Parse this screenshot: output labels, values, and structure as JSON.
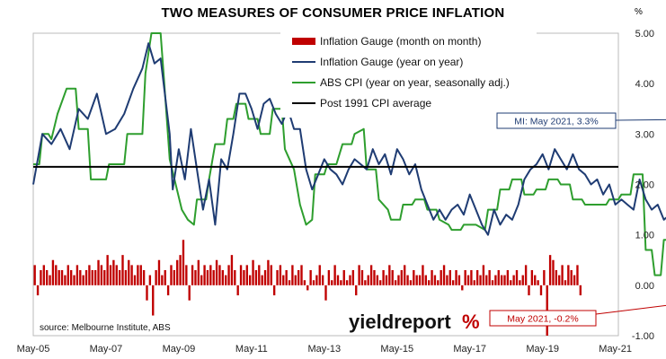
{
  "title": "TWO MEASURES OF CONSUMER PRICE INFLATION",
  "unit": "%",
  "source": "source: Melbourne Institute, ABS",
  "brand": {
    "part1": "yieldreport",
    "part2": "%"
  },
  "chart_data": {
    "type": "line",
    "x_range": [
      "May-05",
      "Jun-21"
    ],
    "ylim": [
      -1,
      5
    ],
    "y_ticks": [
      "5.00",
      "4.00",
      "3.00",
      "2.00",
      "1.00",
      "0.00",
      "-1.00"
    ],
    "x_ticks": [
      "May-05",
      "May-07",
      "May-09",
      "May-11",
      "May-13",
      "May-15",
      "May-17",
      "May-19",
      "May-21"
    ],
    "legend_position": "top-right",
    "series": [
      {
        "name": "Inflation Gauge (month on month)",
        "kind": "bar",
        "color": "#c00000",
        "values": [
          0.4,
          -0.2,
          0.3,
          0.4,
          0.3,
          0.2,
          0.5,
          0.4,
          0.3,
          0.3,
          0.2,
          0.4,
          0.3,
          0.2,
          0.4,
          0.3,
          0.2,
          0.3,
          0.4,
          0.3,
          0.3,
          0.5,
          0.4,
          0.3,
          0.6,
          0.4,
          0.5,
          0.4,
          0.3,
          0.6,
          0.3,
          0.5,
          0.4,
          0.2,
          0.4,
          0.4,
          0.3,
          -0.3,
          0.2,
          -0.6,
          0.3,
          0.5,
          0.2,
          0.3,
          -0.2,
          0.4,
          0.3,
          0.5,
          0.6,
          0.9,
          0.4,
          -0.3,
          0.4,
          0.3,
          0.5,
          0.2,
          0.4,
          0.3,
          0.4,
          0.3,
          0.5,
          0.4,
          0.3,
          0.2,
          0.4,
          0.6,
          0.3,
          -0.2,
          0.4,
          0.3,
          0.4,
          0.2,
          0.5,
          0.3,
          0.4,
          0.2,
          0.3,
          0.5,
          0.4,
          -0.2,
          0.3,
          0.4,
          0.2,
          0.3,
          0.1,
          0.4,
          0.2,
          0.3,
          0.4,
          0.1,
          -0.1,
          0.3,
          0.1,
          0.2,
          0.4,
          0.2,
          -0.3,
          0.3,
          0.1,
          0.4,
          0.2,
          0.1,
          0.3,
          0.1,
          0.2,
          0.3,
          -0.2,
          0.4,
          0.3,
          0.1,
          0.2,
          0.4,
          0.3,
          0.2,
          0.1,
          0.3,
          0.2,
          0.4,
          0.3,
          0.1,
          0.2,
          0.3,
          0.4,
          0.2,
          0.1,
          0.3,
          0.2,
          0.2,
          0.4,
          0.2,
          0.1,
          0.3,
          0.2,
          0.1,
          0.3,
          0.4,
          0.2,
          0.3,
          0.1,
          0.3,
          0.2,
          -0.1,
          0.3,
          0.2,
          0.3,
          0.1,
          0.3,
          0.2,
          0.4,
          0.2,
          0.3,
          0.1,
          0.2,
          0.3,
          0.2,
          0.2,
          0.3,
          0.1,
          0.2,
          0.3,
          0.1,
          0.2,
          0.4,
          -0.2,
          0.3,
          0.2,
          0.1,
          -0.2,
          0.3,
          -1.0,
          0.6,
          0.5,
          0.3,
          0.2,
          0.4,
          0.1,
          0.4,
          0.3,
          0.2,
          0.4,
          -0.2
        ]
      },
      {
        "name": "Inflation Gauge (year on year)",
        "kind": "line",
        "color": "#1f3c73",
        "points": [
          [
            0,
            2.0
          ],
          [
            3,
            3.0
          ],
          [
            6,
            2.8
          ],
          [
            9,
            3.1
          ],
          [
            12,
            2.7
          ],
          [
            15,
            3.5
          ],
          [
            18,
            3.3
          ],
          [
            21,
            3.8
          ],
          [
            24,
            3.0
          ],
          [
            27,
            3.1
          ],
          [
            30,
            3.4
          ],
          [
            33,
            3.9
          ],
          [
            36,
            4.3
          ],
          [
            38,
            4.8
          ],
          [
            40,
            4.4
          ],
          [
            42,
            4.5
          ],
          [
            45,
            3.0
          ],
          [
            46,
            1.9
          ],
          [
            48,
            2.7
          ],
          [
            50,
            2.1
          ],
          [
            52,
            3.1
          ],
          [
            54,
            2.3
          ],
          [
            56,
            1.5
          ],
          [
            58,
            2.1
          ],
          [
            60,
            1.2
          ],
          [
            62,
            2.5
          ],
          [
            64,
            2.3
          ],
          [
            66,
            3.0
          ],
          [
            68,
            3.8
          ],
          [
            70,
            3.8
          ],
          [
            72,
            3.5
          ],
          [
            74,
            3.1
          ],
          [
            76,
            3.6
          ],
          [
            78,
            3.7
          ],
          [
            80,
            3.4
          ],
          [
            82,
            3.2
          ],
          [
            84,
            3.5
          ],
          [
            86,
            3.1
          ],
          [
            88,
            3.1
          ],
          [
            90,
            2.3
          ],
          [
            92,
            1.9
          ],
          [
            94,
            2.2
          ],
          [
            96,
            2.5
          ],
          [
            98,
            2.3
          ],
          [
            100,
            2.2
          ],
          [
            102,
            2.0
          ],
          [
            104,
            2.3
          ],
          [
            106,
            2.5
          ],
          [
            108,
            2.4
          ],
          [
            110,
            2.3
          ],
          [
            112,
            2.7
          ],
          [
            114,
            2.4
          ],
          [
            116,
            2.6
          ],
          [
            118,
            2.2
          ],
          [
            120,
            2.7
          ],
          [
            122,
            2.5
          ],
          [
            124,
            2.2
          ],
          [
            126,
            2.4
          ],
          [
            128,
            1.9
          ],
          [
            130,
            1.6
          ],
          [
            132,
            1.3
          ],
          [
            134,
            1.5
          ],
          [
            136,
            1.3
          ],
          [
            138,
            1.5
          ],
          [
            140,
            1.6
          ],
          [
            142,
            1.4
          ],
          [
            144,
            1.8
          ],
          [
            146,
            1.5
          ],
          [
            148,
            1.2
          ],
          [
            150,
            1.0
          ],
          [
            152,
            1.5
          ],
          [
            154,
            1.2
          ],
          [
            156,
            1.4
          ],
          [
            158,
            1.3
          ],
          [
            160,
            1.6
          ],
          [
            162,
            2.1
          ],
          [
            164,
            2.3
          ],
          [
            166,
            2.4
          ],
          [
            168,
            2.6
          ],
          [
            170,
            2.3
          ],
          [
            172,
            2.7
          ],
          [
            174,
            2.5
          ],
          [
            176,
            2.3
          ],
          [
            178,
            2.6
          ],
          [
            180,
            2.3
          ],
          [
            182,
            2.2
          ],
          [
            184,
            2.0
          ],
          [
            186,
            2.1
          ],
          [
            188,
            1.8
          ],
          [
            190,
            2.0
          ],
          [
            192,
            1.6
          ],
          [
            194,
            1.7
          ],
          [
            196,
            1.6
          ],
          [
            198,
            1.5
          ],
          [
            200,
            2.1
          ],
          [
            202,
            1.7
          ],
          [
            204,
            1.5
          ],
          [
            206,
            1.6
          ],
          [
            208,
            1.3
          ],
          [
            210,
            1.4
          ],
          [
            212,
            1.2
          ],
          [
            214,
            1.4
          ],
          [
            216,
            0.9
          ],
          [
            217,
            0.3
          ],
          [
            219,
            0.9
          ],
          [
            221,
            1.3
          ],
          [
            223,
            1.3
          ],
          [
            225,
            1.1
          ],
          [
            227,
            1.5
          ],
          [
            229,
            1.5
          ],
          [
            231,
            1.6
          ],
          [
            233,
            1.9
          ],
          [
            235,
            2.6
          ],
          [
            236,
            3.3
          ]
        ]
      },
      {
        "name": "ABS CPI (year on year, seasonally adj.)",
        "kind": "line",
        "color": "#2e9e2e",
        "points": [
          [
            0,
            2.4
          ],
          [
            2,
            2.4
          ],
          [
            3,
            3.0
          ],
          [
            5,
            3.0
          ],
          [
            6,
            2.9
          ],
          [
            8,
            3.4
          ],
          [
            11,
            3.9
          ],
          [
            14,
            3.9
          ],
          [
            15,
            3.1
          ],
          [
            18,
            3.1
          ],
          [
            19,
            2.1
          ],
          [
            24,
            2.1
          ],
          [
            25,
            2.4
          ],
          [
            30,
            2.4
          ],
          [
            31,
            3.0
          ],
          [
            36,
            3.0
          ],
          [
            37,
            4.2
          ],
          [
            39,
            5.0
          ],
          [
            42,
            5.0
          ],
          [
            43,
            4.2
          ],
          [
            45,
            2.5
          ],
          [
            47,
            2.0
          ],
          [
            49,
            1.5
          ],
          [
            51,
            1.3
          ],
          [
            53,
            1.2
          ],
          [
            54,
            1.7
          ],
          [
            57,
            1.7
          ],
          [
            58,
            2.1
          ],
          [
            60,
            2.8
          ],
          [
            63,
            2.8
          ],
          [
            64,
            3.3
          ],
          [
            66,
            3.3
          ],
          [
            67,
            3.6
          ],
          [
            70,
            3.6
          ],
          [
            71,
            3.3
          ],
          [
            74,
            3.3
          ],
          [
            75,
            3.0
          ],
          [
            78,
            3.0
          ],
          [
            79,
            3.5
          ],
          [
            82,
            3.5
          ],
          [
            83,
            2.7
          ],
          [
            86,
            2.3
          ],
          [
            88,
            1.6
          ],
          [
            90,
            1.2
          ],
          [
            92,
            1.3
          ],
          [
            93,
            2.2
          ],
          [
            96,
            2.2
          ],
          [
            97,
            2.4
          ],
          [
            100,
            2.4
          ],
          [
            102,
            2.8
          ],
          [
            105,
            2.8
          ],
          [
            106,
            3.0
          ],
          [
            109,
            3.1
          ],
          [
            110,
            2.3
          ],
          [
            113,
            2.3
          ],
          [
            114,
            1.7
          ],
          [
            117,
            1.5
          ],
          [
            118,
            1.3
          ],
          [
            121,
            1.3
          ],
          [
            122,
            1.6
          ],
          [
            125,
            1.6
          ],
          [
            126,
            1.7
          ],
          [
            129,
            1.7
          ],
          [
            130,
            1.5
          ],
          [
            133,
            1.5
          ],
          [
            134,
            1.3
          ],
          [
            137,
            1.2
          ],
          [
            138,
            1.1
          ],
          [
            141,
            1.1
          ],
          [
            142,
            1.2
          ],
          [
            145,
            1.2
          ],
          [
            146,
            1.2
          ],
          [
            149,
            1.1
          ],
          [
            150,
            1.5
          ],
          [
            153,
            1.5
          ],
          [
            154,
            1.9
          ],
          [
            157,
            1.9
          ],
          [
            158,
            2.1
          ],
          [
            161,
            2.1
          ],
          [
            162,
            1.8
          ],
          [
            165,
            1.8
          ],
          [
            166,
            1.9
          ],
          [
            169,
            1.9
          ],
          [
            170,
            2.1
          ],
          [
            173,
            2.1
          ],
          [
            174,
            2.0
          ],
          [
            177,
            2.0
          ],
          [
            178,
            1.7
          ],
          [
            181,
            1.7
          ],
          [
            182,
            1.6
          ],
          [
            185,
            1.6
          ],
          [
            186,
            1.6
          ],
          [
            189,
            1.6
          ],
          [
            190,
            1.7
          ],
          [
            193,
            1.7
          ],
          [
            194,
            1.8
          ],
          [
            197,
            1.8
          ],
          [
            198,
            2.2
          ],
          [
            201,
            2.2
          ],
          [
            202,
            0.7
          ],
          [
            204,
            0.7
          ],
          [
            205,
            0.2
          ],
          [
            207,
            0.2
          ],
          [
            208,
            0.9
          ],
          [
            213,
            0.9
          ],
          [
            214,
            1.0
          ],
          [
            219,
            1.0
          ]
        ]
      },
      {
        "name": "Post 1991 CPI average",
        "kind": "hline",
        "color": "#000000",
        "value": 2.35
      }
    ],
    "annotations": [
      {
        "text": "MI: May 2021, 3.3%",
        "color": "#1f3c73"
      },
      {
        "text": "May 2021, -0.2%",
        "color": "#c00000"
      }
    ]
  }
}
